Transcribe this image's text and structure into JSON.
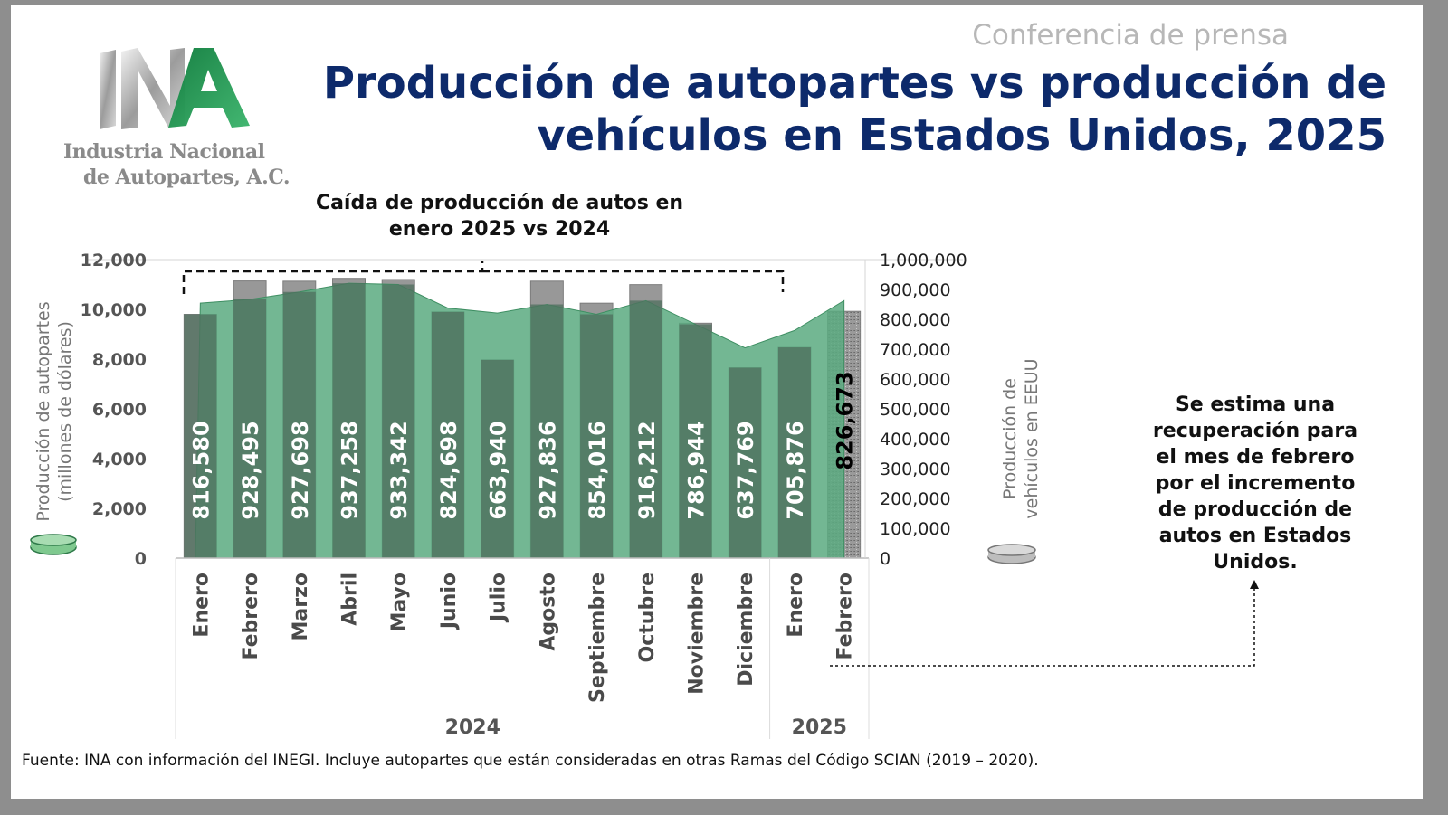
{
  "header": {
    "kicker": "Conferencia de prensa",
    "title": "Producción de autopartes vs producción de vehículos en Estados Unidos, 2025"
  },
  "logo": {
    "line1": "Industria Nacional",
    "line2": "de Autopartes, A.C."
  },
  "annotations": {
    "top": "Caída de producción de autos en enero 2025 vs 2024",
    "right": "Se estima una recuperación para el mes de febrero por el incremento de producción de autos en Estados Unidos."
  },
  "footer": {
    "source": "Fuente: INA con información del INEGI. Incluye autopartes que están consideradas en otras Ramas del Código SCIAN (2019 – 2020)."
  },
  "colors": {
    "title": "#0d2a6b",
    "autopartes_area": "#5aaa80",
    "vehicles_bar": "#989898",
    "overlap": "#4f6f5e"
  },
  "chart_data": {
    "type": "bar",
    "categories": [
      "Enero",
      "Febrero",
      "Marzo",
      "Abril",
      "Mayo",
      "Junio",
      "Julio",
      "Agosto",
      "Septiembre",
      "Octubre",
      "Noviembre",
      "Diciembre",
      "Enero",
      "Febrero"
    ],
    "year_groups": [
      {
        "label": "2024",
        "count": 12
      },
      {
        "label": "2025",
        "count": 2
      }
    ],
    "series": [
      {
        "name": "Producción de vehículos en EEUU",
        "type": "bar",
        "axis": "right",
        "values": [
          816580,
          928495,
          927698,
          937258,
          933342,
          824698,
          663940,
          927836,
          854016,
          916212,
          786944,
          637769,
          705876,
          826673
        ],
        "labels": [
          "816,580",
          "928,495",
          "927,698",
          "937,258",
          "933,342",
          "824,698",
          "663,940",
          "927,836",
          "854,016",
          "916,212",
          "786,944",
          "637,769",
          "705,876",
          "826,673"
        ],
        "estimated": [
          false,
          false,
          false,
          false,
          false,
          false,
          false,
          false,
          false,
          false,
          false,
          false,
          false,
          true
        ]
      },
      {
        "name": "Producción de autopartes (millones de dólares)",
        "type": "area",
        "axis": "left",
        "values": [
          10250,
          10400,
          10700,
          11050,
          11000,
          10050,
          9850,
          10200,
          9800,
          10350,
          9400,
          8450,
          9150,
          10350
        ]
      }
    ],
    "yAxisLeft": {
      "label": "Producción de autopartes (millones de dólares)",
      "ticks": [
        "0",
        "2,000",
        "4,000",
        "6,000",
        "8,000",
        "10,000",
        "12,000"
      ],
      "range": [
        0,
        12000
      ]
    },
    "yAxisRight": {
      "label": "Producción de vehículos en EEUU",
      "ticks": [
        "0",
        "100,000",
        "200,000",
        "300,000",
        "400,000",
        "500,000",
        "600,000",
        "700,000",
        "800,000",
        "900,000",
        "1,000,000"
      ],
      "range": [
        0,
        1000000
      ]
    }
  }
}
